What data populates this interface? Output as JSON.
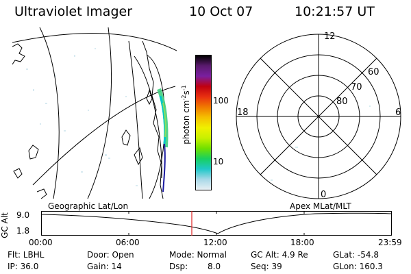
{
  "header": {
    "title": "Ultraviolet Imager",
    "date": "10 Oct 07",
    "time": "10:21:57 UT"
  },
  "colorbar": {
    "unit_label": "photon cm",
    "unit_exp1": "-2",
    "unit_s": "s",
    "unit_exp2": "-1",
    "ticks": [
      "100",
      "10"
    ],
    "colors": [
      "#000000",
      "#5a1a6e",
      "#7a1fa0",
      "#c00010",
      "#e83010",
      "#f07a00",
      "#f5c000",
      "#f0f000",
      "#c8f000",
      "#70e000",
      "#18d060",
      "#20c8c8",
      "#a8d8e8",
      "#e8f0f4"
    ]
  },
  "polar": {
    "mlt_labels": [
      "12",
      "18",
      "6",
      "0"
    ],
    "lat_labels": [
      "60",
      "70",
      "80"
    ]
  },
  "timeline": {
    "left_label": "Geographic Lat/Lon",
    "right_label": "Apex MLat/MLT",
    "yaxis_label": "GC Alt",
    "y_ticks": [
      "9.0",
      "1.8"
    ],
    "x_ticks": [
      "00:00",
      "06:00",
      "12:00",
      "18:00",
      "23:59"
    ],
    "marker_color": "#e02020"
  },
  "status": {
    "filter": "Flt: LBHL",
    "ip": "IP: 36.0",
    "door": "Door: Open",
    "gain": "Gain: 14",
    "mode": "Mode: Normal",
    "dsp_label": "Dsp:",
    "dsp_value": "8.0",
    "gc_alt": "GC Alt: 4.9 Re",
    "seq": "Seq: 39",
    "glat": "GLat: -54.8",
    "glon": "GLon: 160.3"
  }
}
